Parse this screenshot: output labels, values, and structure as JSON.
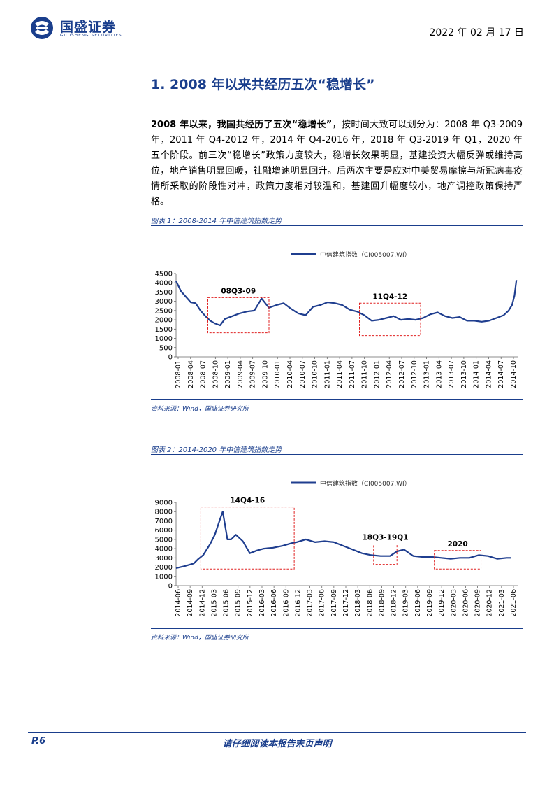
{
  "header": {
    "logo_name": "国盛证券",
    "logo_sub": "GUOSHENG SECURITIES",
    "date": "2022 年 02 月 17 日"
  },
  "section": {
    "title": "1. 2008 年以来共经历五次“稳增长”"
  },
  "body": {
    "lead": "2008 年以来，我国共经历了五次“稳增长”",
    "text": "，按时间大致可以划分为：2008 年 Q3-2009 年，2011 年 Q4-2012 年，2014 年 Q4-2016 年，2018 年 Q3-2019 年 Q1，2020 年五个阶段。前三次“稳增长”政策力度较大，稳增长效果明显，基建投资大幅反弹或维持高位，地产销售明显回暖，社融增速明显回升。后两次主要是应对中美贸易摩擦与新冠病毒疫情所采取的阶段性对冲，政策力度相对较温和，基建回升幅度较小，地产调控政策保持严格。"
  },
  "figures": [
    {
      "title": "图表 1：2008-2014 年中信建筑指数走势",
      "source": "资料来源：Wind，国盛证券研究所"
    },
    {
      "title": "图表 2：2014-2020 年中信建筑指数走势",
      "source": "资料来源：Wind，国盛证券研究所"
    }
  ],
  "footer": {
    "page": "P.6",
    "disclaimer": "请仔细阅读本报告末页声明"
  },
  "chart_data": [
    {
      "type": "line",
      "title": "",
      "legend": "中信建筑指数（CI005007.WI）",
      "legend_position": "top-center",
      "color": "#1f3e8f",
      "ylim": [
        0,
        4500
      ],
      "yticks": [
        "0",
        "500",
        "1000",
        "1500",
        "2000",
        "2500",
        "3000",
        "3500",
        "4000",
        "4500"
      ],
      "xticks": [
        "2008-01",
        "2008-04",
        "2008-07",
        "2008-10",
        "2009-01",
        "2009-04",
        "2009-07",
        "2009-10",
        "2010-01",
        "2010-04",
        "2010-07",
        "2010-10",
        "2011-01",
        "2011-04",
        "2011-07",
        "2011-10",
        "2012-01",
        "2012-04",
        "2012-07",
        "2012-10",
        "2013-01",
        "2013-04",
        "2013-07",
        "2013-10",
        "2014-01",
        "2014-04",
        "2014-07",
        "2014-10"
      ],
      "x_range": [
        2008.0,
        2015.0
      ],
      "series": [
        {
          "x": [
            2008.0,
            2008.1,
            2008.2,
            2008.3,
            2008.4,
            2008.5,
            2008.6,
            2008.7,
            2008.8,
            2008.9,
            2009.0,
            2009.15,
            2009.3,
            2009.45,
            2009.6,
            2009.75,
            2009.9,
            2010.05,
            2010.2,
            2010.35,
            2010.5,
            2010.65,
            2010.8,
            2010.95,
            2011.1,
            2011.25,
            2011.4,
            2011.55,
            2011.7,
            2011.85,
            2012.0,
            2012.15,
            2012.3,
            2012.45,
            2012.6,
            2012.75,
            2012.9,
            2013.05,
            2013.2,
            2013.35,
            2013.5,
            2013.65,
            2013.8,
            2013.95,
            2014.1,
            2014.25,
            2014.4,
            2014.55,
            2014.7,
            2014.8,
            2014.87,
            2014.92,
            2014.96
          ],
          "y": [
            4100,
            3550,
            3250,
            2950,
            2900,
            2500,
            2200,
            1950,
            1800,
            1700,
            2050,
            2200,
            2350,
            2450,
            2500,
            3150,
            2650,
            2800,
            2900,
            2600,
            2350,
            2250,
            2700,
            2800,
            2950,
            2900,
            2800,
            2550,
            2450,
            2250,
            1950,
            2000,
            2100,
            2200,
            2000,
            2050,
            2000,
            2100,
            2300,
            2400,
            2200,
            2100,
            2150,
            1950,
            1950,
            1900,
            1950,
            2100,
            2250,
            2500,
            2800,
            3300,
            4150
          ]
        }
      ],
      "annotations": [
        {
          "label": "08Q3-09",
          "x_range": [
            2008.65,
            2009.9
          ],
          "y_range": [
            1300,
            3200
          ]
        },
        {
          "label": "11Q4-12",
          "x_range": [
            2011.75,
            2013.0
          ],
          "y_range": [
            1150,
            2900
          ]
        }
      ]
    },
    {
      "type": "line",
      "title": "",
      "legend": "中信建筑指数（CI005007.WI）",
      "legend_position": "top-center",
      "color": "#1f3e8f",
      "ylim": [
        0,
        9000
      ],
      "yticks": [
        "0",
        "1000",
        "2000",
        "3000",
        "4000",
        "5000",
        "6000",
        "7000",
        "8000",
        "9000"
      ],
      "xticks": [
        "2014-06",
        "2014-09",
        "2014-12",
        "2015-03",
        "2015-06",
        "2015-09",
        "2015-12",
        "2016-03",
        "2016-06",
        "2016-09",
        "2016-12",
        "2017-03",
        "2017-06",
        "2017-09",
        "2017-12",
        "2018-03",
        "2018-06",
        "2018-09",
        "2018-12",
        "2019-03",
        "2019-06",
        "2019-09",
        "2019-12",
        "2020-03",
        "2020-06",
        "2020-09",
        "2020-12",
        "2021-03",
        "2021-06"
      ],
      "x_range": [
        2014.42,
        2021.75
      ],
      "series": [
        {
          "x": [
            2014.42,
            2014.6,
            2014.8,
            2014.9,
            2015.0,
            2015.15,
            2015.25,
            2015.35,
            2015.42,
            2015.47,
            2015.52,
            2015.6,
            2015.7,
            2015.85,
            2016.0,
            2016.15,
            2016.3,
            2016.5,
            2016.7,
            2016.9,
            2017.0,
            2017.2,
            2017.4,
            2017.6,
            2017.8,
            2018.0,
            2018.2,
            2018.4,
            2018.6,
            2018.8,
            2019.0,
            2019.15,
            2019.3,
            2019.5,
            2019.7,
            2019.9,
            2020.1,
            2020.3,
            2020.5,
            2020.7,
            2020.9,
            2021.1,
            2021.3,
            2021.5,
            2021.6
          ],
          "y": [
            1900,
            2100,
            2400,
            2900,
            3300,
            4500,
            5500,
            7000,
            8000,
            6500,
            5000,
            5000,
            5500,
            4800,
            3500,
            3800,
            4000,
            4100,
            4300,
            4600,
            4700,
            5000,
            4700,
            4800,
            4700,
            4300,
            3900,
            3500,
            3300,
            3200,
            3200,
            3700,
            3900,
            3200,
            3100,
            3100,
            3000,
            2900,
            3000,
            3000,
            3300,
            3200,
            2900,
            3000,
            3000
          ]
        }
      ],
      "annotations": [
        {
          "label": "14Q4-16",
          "x_range": [
            2014.95,
            2016.95
          ],
          "y_range": [
            1800,
            8500
          ]
        },
        {
          "label": "18Q3-19Q1",
          "x_range": [
            2018.65,
            2019.15
          ],
          "y_range": [
            2300,
            4500
          ]
        },
        {
          "label": "2020",
          "x_range": [
            2019.95,
            2020.95
          ],
          "y_range": [
            1800,
            3800
          ]
        }
      ]
    }
  ]
}
